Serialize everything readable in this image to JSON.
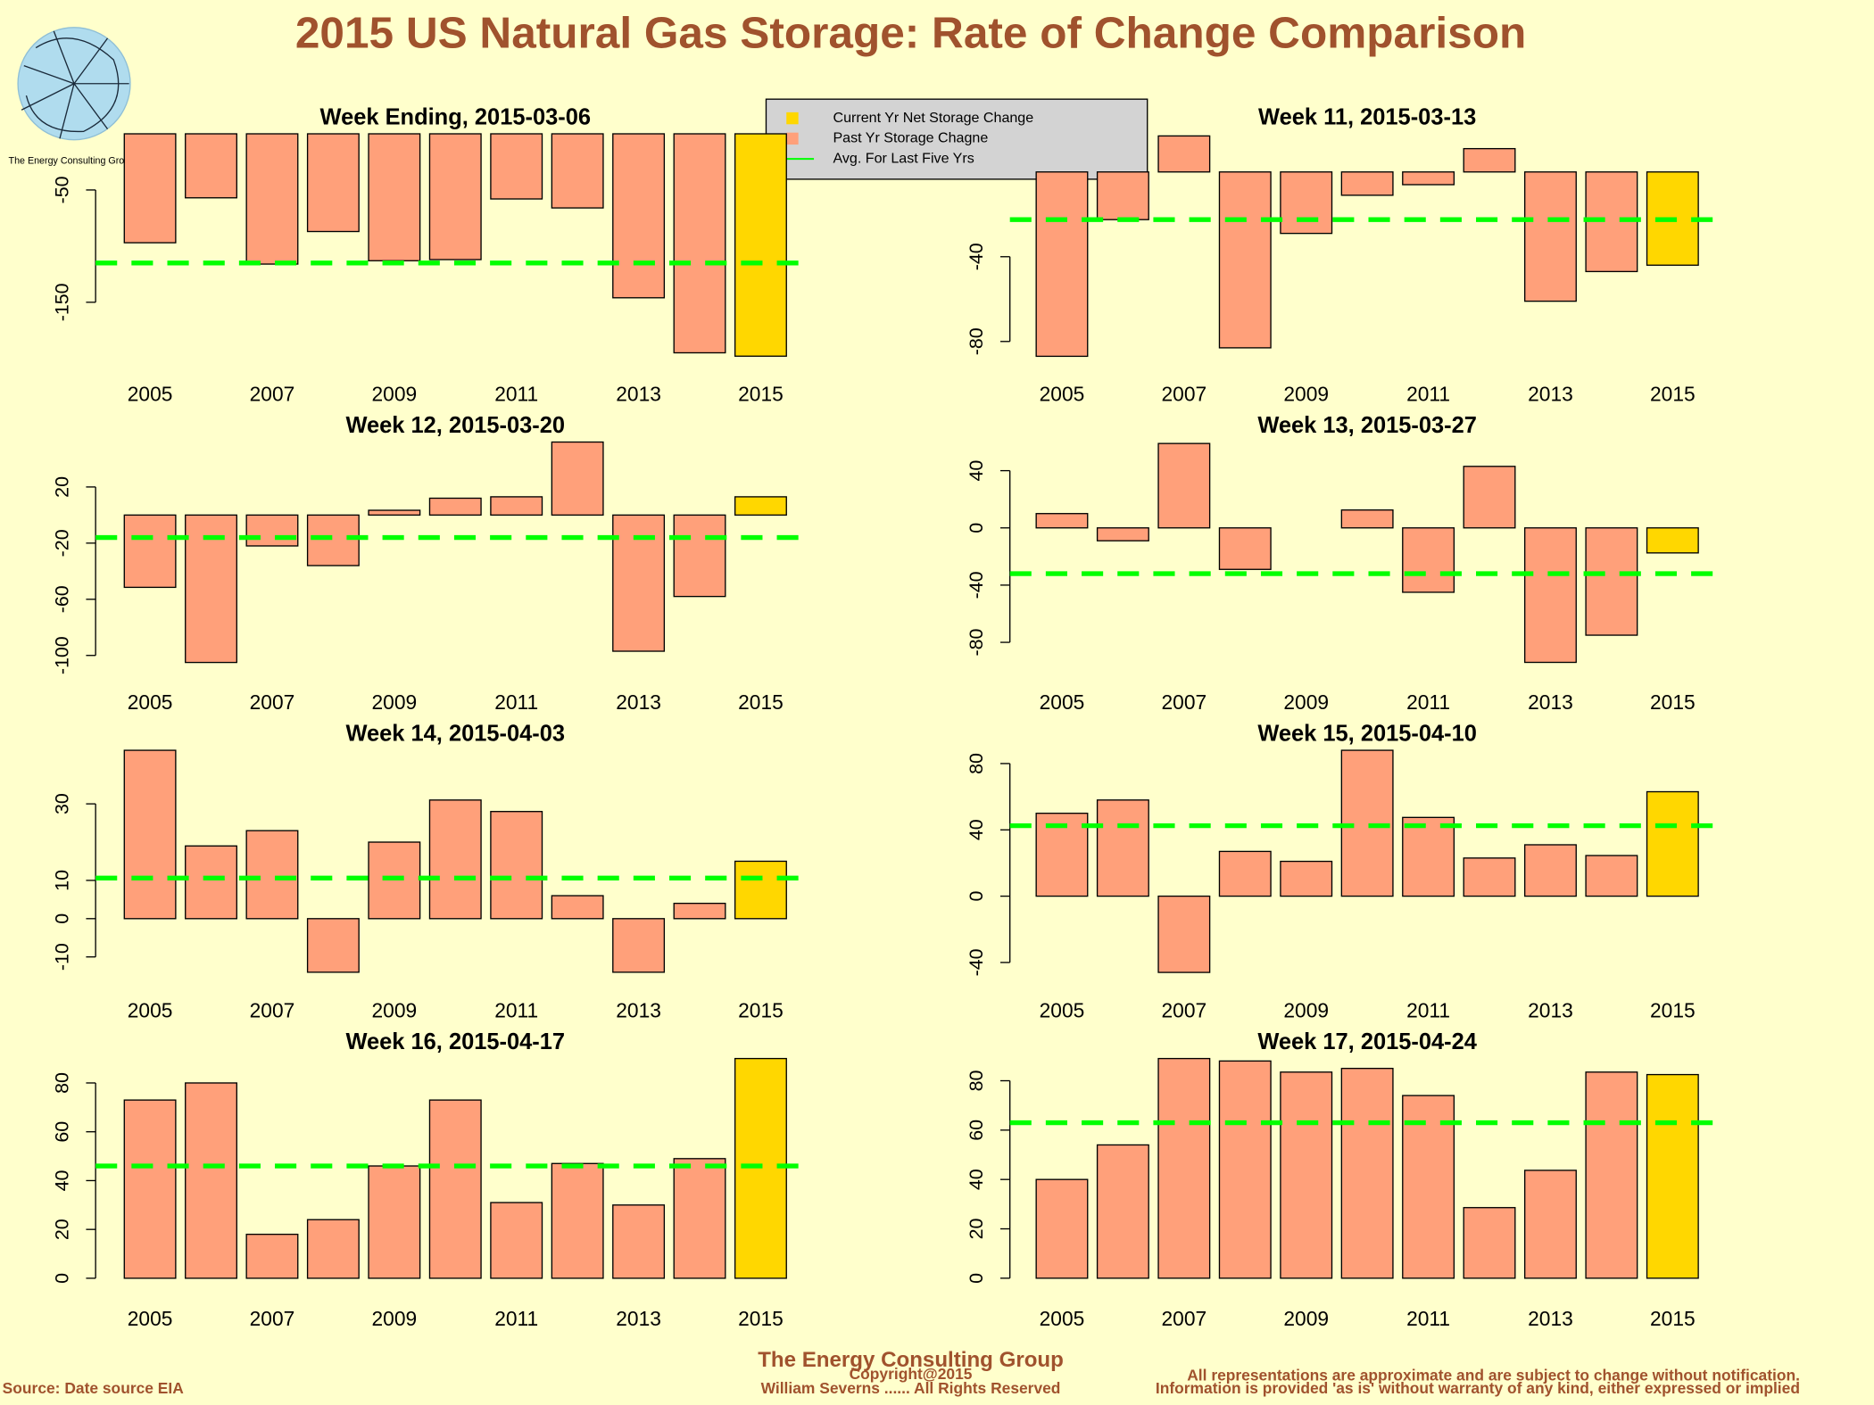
{
  "title": "2015 US Natural Gas Storage: Rate of Change Comparison",
  "logo_text": "The Energy Consulting Group",
  "legend": [
    {
      "label": "Current Yr Net Storage Change",
      "color": "#FFD700",
      "shape": "square"
    },
    {
      "label": "Past Yr Storage Chagne",
      "color": "#FFA07A",
      "shape": "square"
    },
    {
      "label": "Avg. For Last Five Yrs",
      "color": "#00FF00",
      "shape": "line"
    }
  ],
  "footer": {
    "company": "The Energy Consulting Group",
    "copyright": "Copyright@2015",
    "author": "William Severns ...... All Rights Reserved",
    "source": "Source: Date source EIA",
    "disclaimer1": "All representations are approximate and are subject to change without notification.",
    "disclaimer2": "Information is provided 'as is' without warranty of any kind, either expressed or implied"
  },
  "chart_data": [
    {
      "type": "bar",
      "title": "Week Ending, 2015-03-06",
      "categories": [
        "2005",
        null,
        "2007",
        null,
        "2009",
        null,
        "2011",
        null,
        "2013",
        null,
        "2015"
      ],
      "values": [
        -97,
        -57,
        -116,
        -87,
        -113,
        -112,
        -58,
        -66,
        -146,
        -195,
        -198
      ],
      "average": -115,
      "colors": [
        "#FFA07A",
        "#FFA07A",
        "#FFA07A",
        "#FFA07A",
        "#FFA07A",
        "#FFA07A",
        "#FFA07A",
        "#FFA07A",
        "#FFA07A",
        "#FFA07A",
        "#FFD700"
      ],
      "ylim": [
        -200,
        0
      ],
      "yticks": [
        -150,
        -50
      ]
    },
    {
      "type": "bar",
      "title": "Week 11, 2015-03-13",
      "categories": [
        "2005",
        null,
        "2007",
        null,
        "2009",
        null,
        "2011",
        null,
        "2013",
        null,
        "2015"
      ],
      "values": [
        -87,
        -22.5,
        17,
        -83,
        -29,
        -11,
        -6,
        11,
        -61,
        -47,
        -44
      ],
      "average": -22.5,
      "colors": [
        "#FFA07A",
        "#FFA07A",
        "#FFA07A",
        "#FFA07A",
        "#FFA07A",
        "#FFA07A",
        "#FFA07A",
        "#FFA07A",
        "#FFA07A",
        "#FFA07A",
        "#FFD700"
      ],
      "ylim": [
        -88,
        18
      ],
      "yticks": [
        -80,
        -40
      ]
    },
    {
      "type": "bar",
      "title": "Week 12, 2015-03-20",
      "categories": [
        "2005",
        null,
        "2007",
        null,
        "2009",
        null,
        "2011",
        null,
        "2013",
        null,
        "2015"
      ],
      "values": [
        -51.5,
        -105,
        -22,
        -36,
        3.4,
        12,
        13,
        52,
        -97,
        -58,
        13
      ],
      "average": -16,
      "colors": [
        "#FFA07A",
        "#FFA07A",
        "#FFA07A",
        "#FFA07A",
        "#FFA07A",
        "#FFA07A",
        "#FFA07A",
        "#FFA07A",
        "#FFA07A",
        "#FFA07A",
        "#FFD700"
      ],
      "ylim": [
        -108,
        52
      ],
      "yticks": [
        -100,
        -60,
        -20,
        20
      ]
    },
    {
      "type": "bar",
      "title": "Week 13, 2015-03-27",
      "categories": [
        "2005",
        null,
        "2007",
        null,
        "2009",
        null,
        "2011",
        null,
        "2013",
        null,
        "2015"
      ],
      "values": [
        10,
        -9,
        59,
        -29,
        0,
        12.5,
        -45,
        43,
        -94,
        -75,
        -17.5
      ],
      "average": -32,
      "colors": [
        "#FFA07A",
        "#FFA07A",
        "#FFA07A",
        "#FFA07A",
        "#FFA07A",
        "#FFA07A",
        "#FFA07A",
        "#FFA07A",
        "#FFA07A",
        "#FFA07A",
        "#FFD700"
      ],
      "ylim": [
        -97,
        60
      ],
      "yticks": [
        -80,
        -40,
        0,
        40
      ]
    },
    {
      "type": "bar",
      "title": "Week 14, 2015-04-03",
      "categories": [
        "2005",
        null,
        "2007",
        null,
        "2009",
        null,
        "2011",
        null,
        "2013",
        null,
        "2015"
      ],
      "values": [
        44,
        19,
        23,
        -14,
        20,
        31,
        28,
        6,
        -14,
        4,
        15
      ],
      "average": 10.6,
      "colors": [
        "#FFA07A",
        "#FFA07A",
        "#FFA07A",
        "#FFA07A",
        "#FFA07A",
        "#FFA07A",
        "#FFA07A",
        "#FFA07A",
        "#FFA07A",
        "#FFA07A",
        "#FFD700"
      ],
      "ylim": [
        -14.7,
        44
      ],
      "yticks": [
        -10,
        0,
        10,
        30
      ]
    },
    {
      "type": "bar",
      "title": "Week 15, 2015-04-10",
      "categories": [
        "2005",
        null,
        "2007",
        null,
        "2009",
        null,
        "2011",
        null,
        "2013",
        null,
        "2015"
      ],
      "values": [
        50,
        58,
        -46,
        27,
        21,
        88,
        47.5,
        23,
        31,
        24.5,
        63
      ],
      "average": 42.5,
      "colors": [
        "#FFA07A",
        "#FFA07A",
        "#FFA07A",
        "#FFA07A",
        "#FFA07A",
        "#FFA07A",
        "#FFA07A",
        "#FFA07A",
        "#FFA07A",
        "#FFA07A",
        "#FFD700"
      ],
      "ylim": [
        -47.5,
        88
      ],
      "yticks": [
        -40,
        0,
        40,
        80
      ]
    },
    {
      "type": "bar",
      "title": "Week 16, 2015-04-17",
      "categories": [
        "2005",
        null,
        "2007",
        null,
        "2009",
        null,
        "2011",
        null,
        "2013",
        null,
        "2015"
      ],
      "values": [
        73,
        80,
        18,
        24,
        46,
        73,
        31,
        47,
        30,
        49,
        90
      ],
      "average": 46,
      "colors": [
        "#FFA07A",
        "#FFA07A",
        "#FFA07A",
        "#FFA07A",
        "#FFA07A",
        "#FFA07A",
        "#FFA07A",
        "#FFA07A",
        "#FFA07A",
        "#FFA07A",
        "#FFD700"
      ],
      "ylim": [
        -2,
        90
      ],
      "yticks": [
        0,
        20,
        40,
        60,
        80
      ]
    },
    {
      "type": "bar",
      "title": "Week 17, 2015-04-24",
      "categories": [
        "2005",
        null,
        "2007",
        null,
        "2009",
        null,
        "2011",
        null,
        "2013",
        null,
        "2015"
      ],
      "values": [
        40,
        54,
        89,
        88,
        83.5,
        85,
        74,
        28.6,
        43.7,
        83.5,
        82.5
      ],
      "average": 63,
      "colors": [
        "#FFA07A",
        "#FFA07A",
        "#FFA07A",
        "#FFA07A",
        "#FFA07A",
        "#FFA07A",
        "#FFA07A",
        "#FFA07A",
        "#FFA07A",
        "#FFA07A",
        "#FFD700"
      ],
      "ylim": [
        -2,
        89
      ],
      "yticks": [
        0,
        20,
        40,
        60,
        80
      ]
    }
  ]
}
